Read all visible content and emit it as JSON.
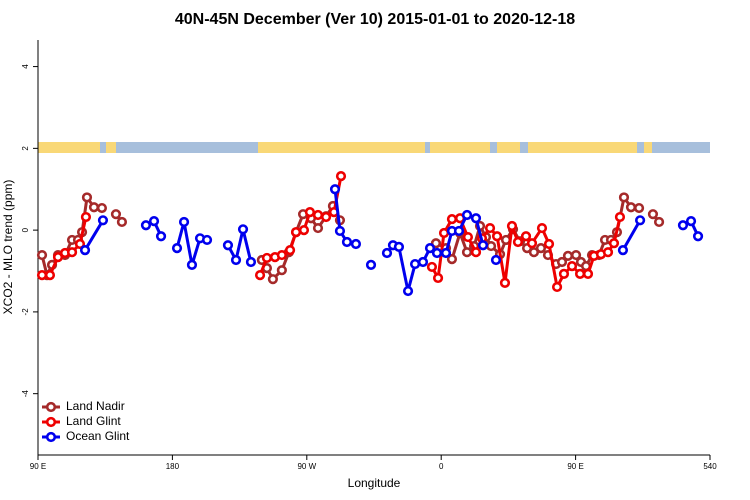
{
  "chart_data": {
    "type": "line",
    "title": "40N-45N December (Ver 10)   2015-01-01 to 2020-12-18",
    "xlabel": "Longitude",
    "ylabel": "XCO2 - MLO trend (ppm)",
    "xlim": [
      90,
      540
    ],
    "ylim": [
      -5.5,
      4.65
    ],
    "xticks": [
      {
        "value": 90,
        "label": "90 E"
      },
      180,
      {
        "value": 270,
        "label": "90 W"
      },
      {
        "value": 360,
        "label": "0"
      },
      {
        "value": 450,
        "label": "90 E"
      },
      540
    ],
    "yticks": [
      -4,
      -2,
      0,
      2,
      4
    ],
    "legend": "bottom-left",
    "series": [
      {
        "name": "Land Nadir",
        "color": "#a52a2a",
        "x": [
          92.7,
          96.0,
          99.4,
          103.4,
          108.1,
          112.8,
          116.8,
          119.5,
          122.8,
          127.5,
          132.8,
          null,
          142.2,
          146.2,
          null,
          239.9,
          243.3,
          247.3,
          253.3,
          258.0,
          262.8,
          267.5,
          272.8,
          277.5,
          282.9,
          287.5,
          292.2,
          null,
          356.5,
          363.2,
          367.2,
          372.6,
          377.3,
          382.0,
          386.0,
          390.0,
          393.4,
          399.4,
          403.4,
          408.1,
          412.8,
          417.5,
          422.1,
          426.8,
          431.5,
          436.9,
          440.9,
          444.9,
          450.3,
          453.6,
          457.0,
          461.0,
          465.7,
          469.7,
          473.7,
          477.7,
          482.4,
          487.1,
          492.5,
          null,
          501.8,
          505.9
        ],
        "values": [
          -0.61,
          -1.1,
          -0.85,
          -0.61,
          -0.61,
          -0.24,
          -0.24,
          -0.05,
          0.8,
          0.56,
          0.54,
          null,
          0.39,
          0.2,
          null,
          -0.73,
          -0.93,
          -1.2,
          -0.98,
          -0.54,
          -0.05,
          0.39,
          0.29,
          0.05,
          0.34,
          0.59,
          0.24,
          null,
          -0.32,
          -0.44,
          -0.71,
          -0.07,
          -0.54,
          -0.39,
          0.1,
          -0.17,
          -0.39,
          -0.59,
          -0.24,
          0.02,
          -0.27,
          -0.44,
          -0.54,
          -0.44,
          -0.61,
          -0.83,
          -0.78,
          -0.63,
          -0.61,
          -0.78,
          -0.88,
          -0.61,
          -0.61,
          -0.24,
          -0.24,
          -0.05,
          0.8,
          0.56,
          0.54,
          null,
          0.39,
          0.2
        ]
      },
      {
        "name": "Land Glint",
        "color": "#ee0000",
        "x": [
          92.7,
          98.0,
          103.4,
          108.1,
          112.8,
          118.1,
          122.1,
          null,
          238.7,
          243.3,
          248.7,
          253.3,
          258.8,
          262.8,
          268.1,
          272.1,
          277.5,
          282.9,
          288.2,
          292.9,
          null,
          353.8,
          357.9,
          361.9,
          367.2,
          372.6,
          377.9,
          383.3,
          387.3,
          392.7,
          397.4,
          402.7,
          407.4,
          411.4,
          416.8,
          420.8,
          427.5,
          432.2,
          437.6,
          442.2,
          447.6,
          453.0,
          458.3,
          462.3,
          467.0,
          471.7,
          475.7,
          479.7
        ],
        "values": [
          -1.1,
          -1.1,
          -0.66,
          -0.56,
          -0.54,
          -0.34,
          0.32,
          null,
          -1.1,
          -0.68,
          -0.66,
          -0.61,
          -0.49,
          -0.05,
          0,
          0.44,
          0.37,
          0.32,
          0.44,
          1.32,
          null,
          -0.9,
          -1.17,
          -0.07,
          0.27,
          0.29,
          -0.17,
          -0.54,
          -0.2,
          0.05,
          -0.15,
          -1.29,
          0.1,
          -0.29,
          -0.15,
          -0.32,
          0.05,
          -0.34,
          -1.39,
          -1.07,
          -0.88,
          -1.07,
          -1.07,
          -0.63,
          -0.59,
          -0.54,
          -0.32,
          0.32
        ]
      },
      {
        "name": "Ocean Glint",
        "color": "#0000ee",
        "x": [
          121.5,
          133.5,
          null,
          162.3,
          167.7,
          172.4,
          null,
          183.1,
          187.8,
          193.1,
          198.5,
          203.2,
          null,
          217.2,
          222.6,
          227.3,
          232.6,
          null,
          288.9,
          292.2,
          296.9,
          302.9,
          null,
          313.0,
          null,
          323.7,
          327.7,
          331.7,
          337.8,
          342.5,
          347.8,
          352.5,
          357.2,
          363.2,
          367.2,
          371.9,
          377.3,
          383.3,
          388.0,
          null,
          396.7,
          null,
          481.7,
          493.2,
          null,
          521.9,
          527.3,
          532.0
        ],
        "values": [
          -0.49,
          0.24,
          null,
          0.12,
          0.22,
          -0.15,
          null,
          -0.44,
          0.2,
          -0.85,
          -0.2,
          -0.24,
          null,
          -0.37,
          -0.73,
          0.02,
          -0.78,
          null,
          1.0,
          -0.02,
          -0.29,
          -0.34,
          null,
          -0.85,
          null,
          -0.56,
          -0.37,
          -0.41,
          -1.49,
          -0.83,
          -0.78,
          -0.44,
          -0.56,
          -0.56,
          -0.02,
          -0.02,
          0.37,
          0.29,
          -0.37,
          null,
          -0.73,
          null,
          -0.49,
          0.24,
          null,
          0.12,
          0.22,
          -0.15
        ]
      }
    ]
  }
}
